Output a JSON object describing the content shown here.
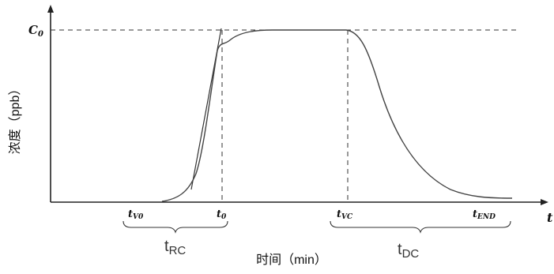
{
  "chart_data": {
    "type": "line",
    "ylabel": "浓度（ppb）",
    "xlabel": "时间（min）",
    "x_axis_symbol": "t",
    "y_reference_label": "C",
    "y_reference_sub": "0",
    "x_ticks": [
      {
        "id": "tv0",
        "main": "t",
        "sub": "V0"
      },
      {
        "id": "t0",
        "main": "t",
        "sub": "0"
      },
      {
        "id": "tvc",
        "main": "t",
        "sub": "VC"
      },
      {
        "id": "tend",
        "main": "t",
        "sub": "END"
      }
    ],
    "intervals": [
      {
        "id": "trc",
        "main": "t",
        "sub": "RC",
        "from": "tv0",
        "to": "t0"
      },
      {
        "id": "tdc",
        "main": "t",
        "sub": "DC",
        "from": "tvc",
        "to": "tend"
      }
    ],
    "curve_note": "Concentration rises from tV0, levels at C0 after t0, stays flat until tVC, then decays toward zero by tEND"
  }
}
